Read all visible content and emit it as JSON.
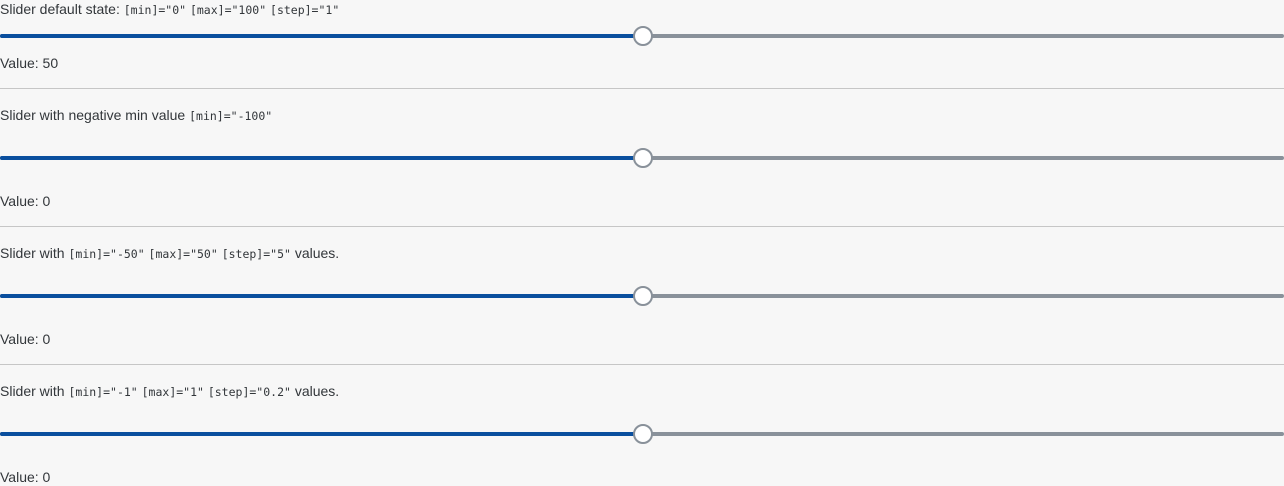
{
  "sliders": [
    {
      "desc_text": "Slider default state:",
      "codes": [
        "[min]=\"0\"",
        "[max]=\"100\"",
        "[step]=\"1\""
      ],
      "desc_suffix": "",
      "min": 0,
      "max": 100,
      "step": 1,
      "value": 50,
      "value_label": "Value: 50"
    },
    {
      "desc_text": "Slider with negative min value",
      "codes": [
        "[min]=\"-100\""
      ],
      "desc_suffix": "",
      "min": -100,
      "max": 100,
      "step": 1,
      "value": 0,
      "value_label": "Value: 0"
    },
    {
      "desc_text": "Slider with",
      "codes": [
        "[min]=\"-50\"",
        "[max]=\"50\"",
        "[step]=\"5\""
      ],
      "desc_suffix": "values.",
      "min": -50,
      "max": 50,
      "step": 5,
      "value": 0,
      "value_label": "Value: 0"
    },
    {
      "desc_text": "Slider with",
      "codes": [
        "[min]=\"-1\"",
        "[max]=\"1\"",
        "[step]=\"0.2\""
      ],
      "desc_suffix": "values.",
      "min": -1,
      "max": 1,
      "step": 0.2,
      "value": 0,
      "value_label": "Value: 0"
    }
  ],
  "colors": {
    "track": "#89919a",
    "fill": "#0a4f9e",
    "handle_border": "#89919a",
    "divider": "#c6c6c6"
  }
}
